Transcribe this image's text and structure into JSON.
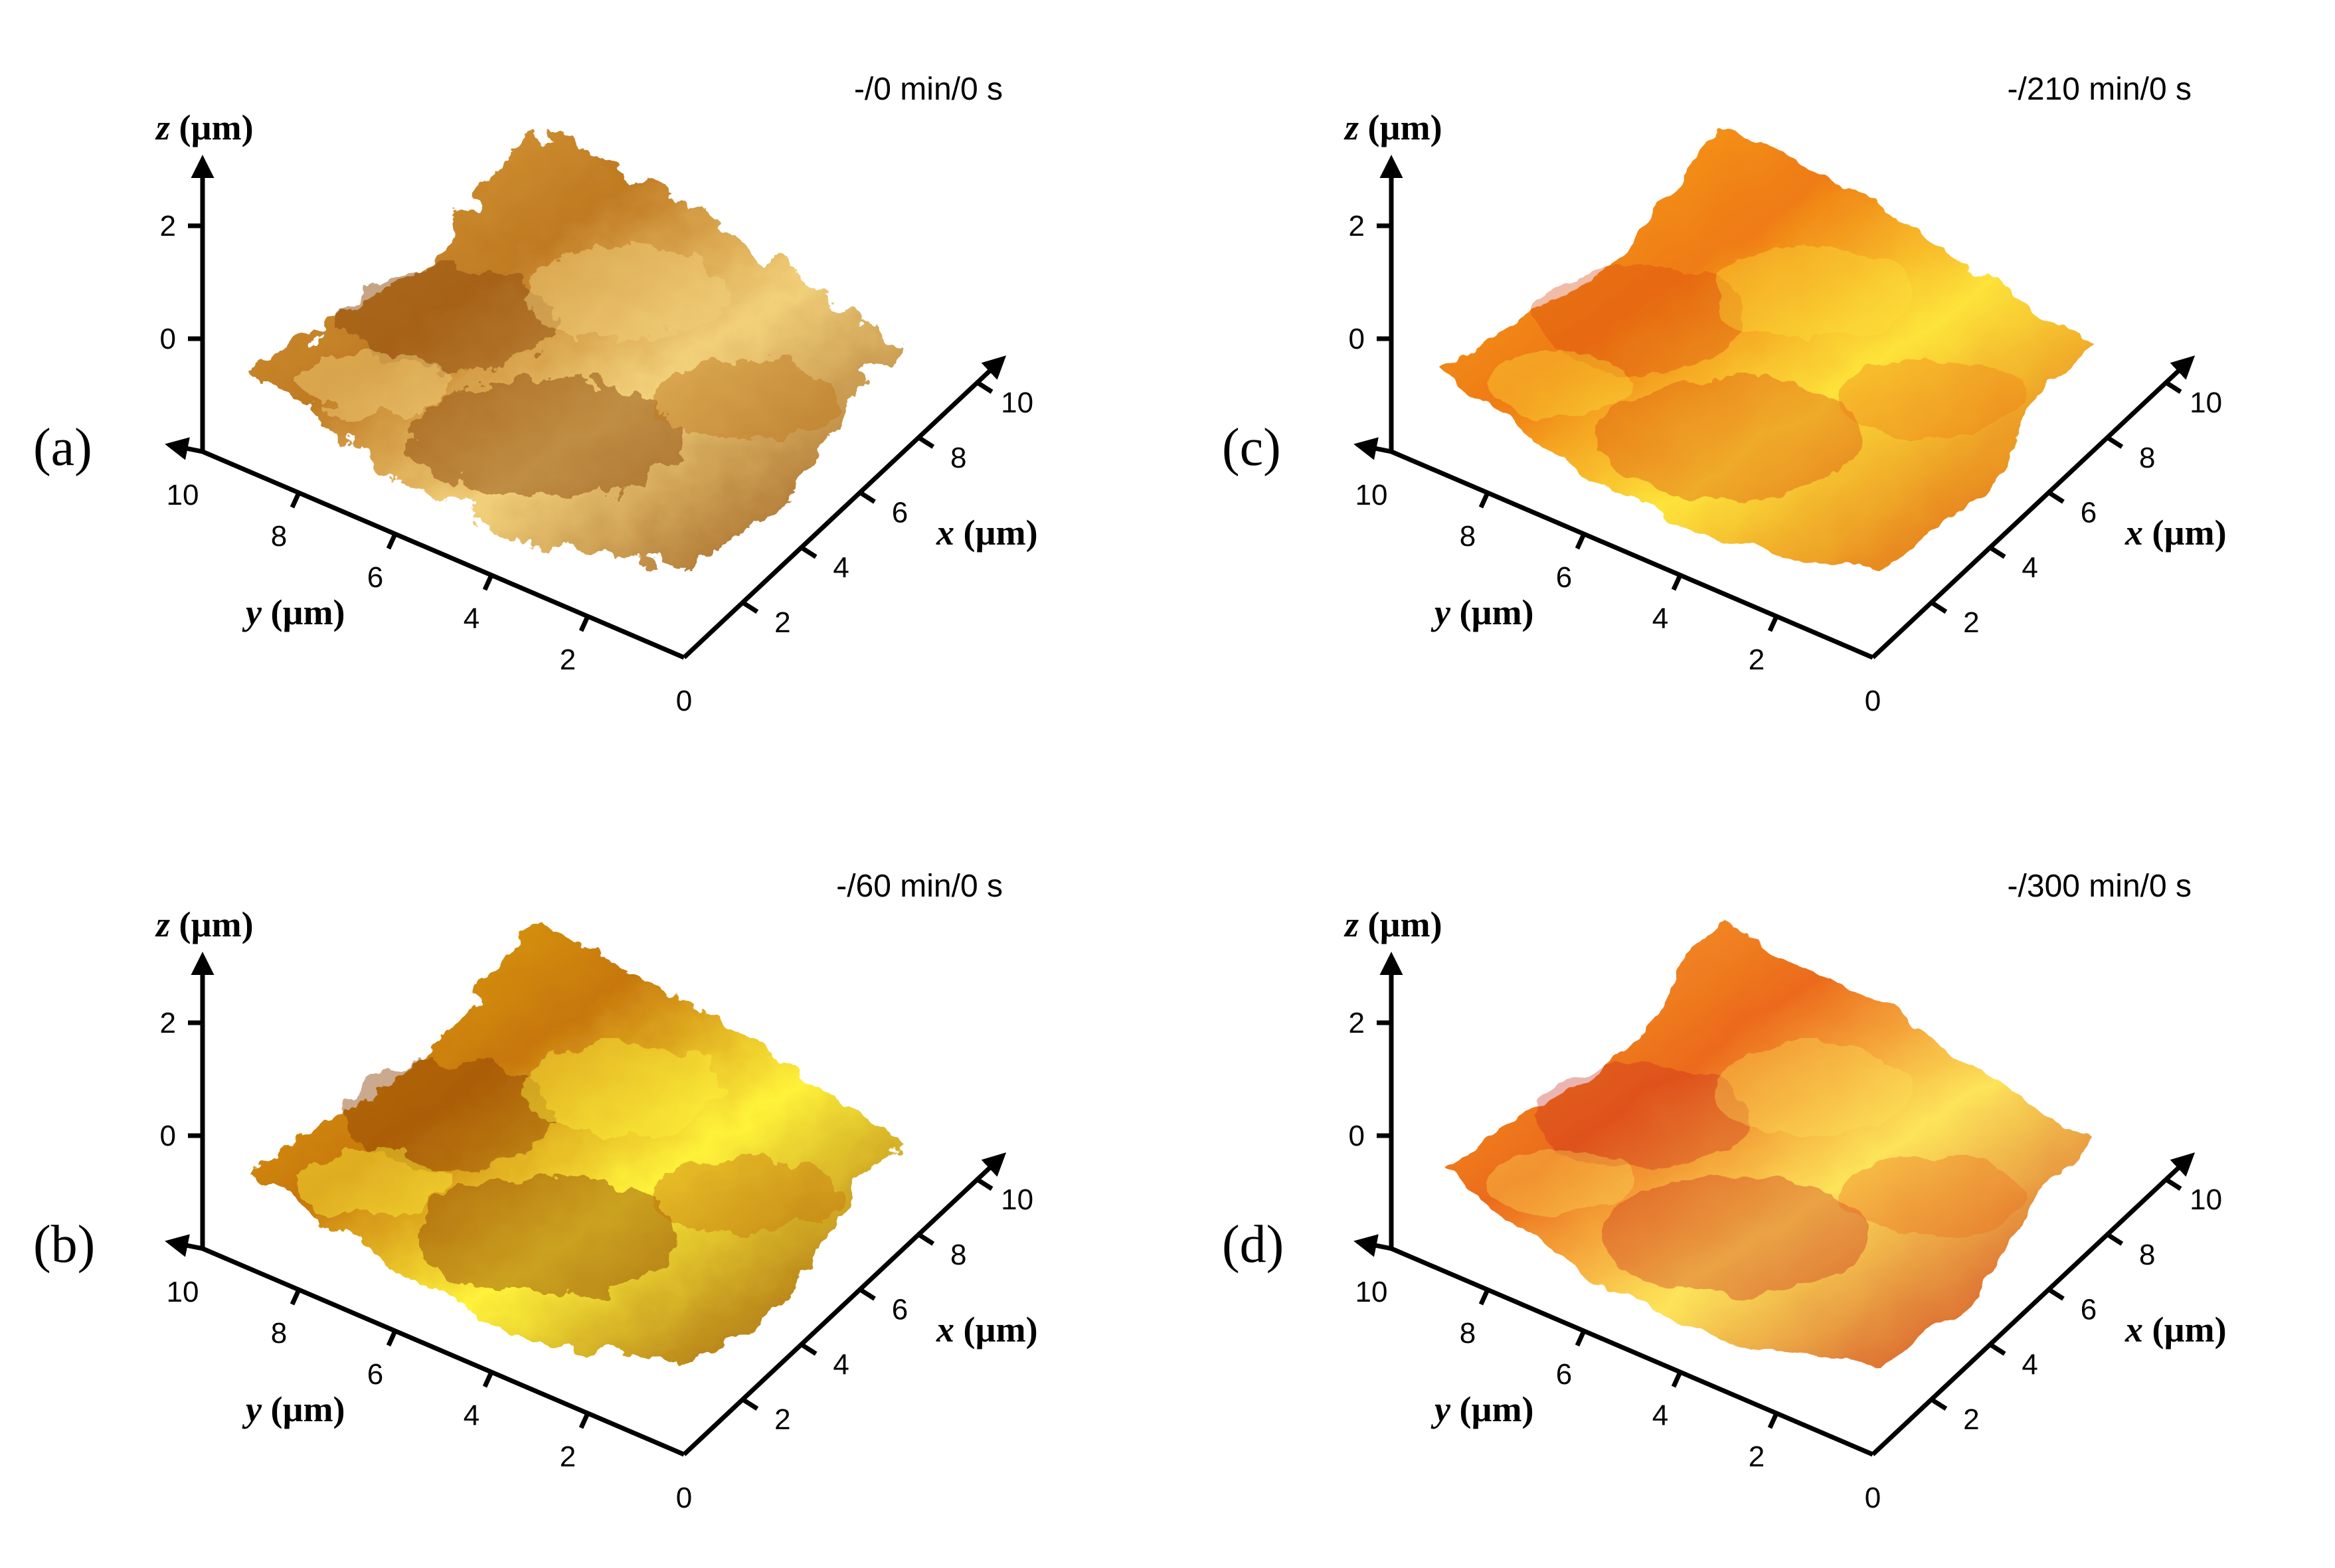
{
  "chart_data": [
    {
      "type": "surface3d",
      "panel_label": "(a)",
      "condition": "-/0 min/0 s",
      "xlabel": {
        "var": "x",
        "unit": "(µm)"
      },
      "ylabel": {
        "var": "y",
        "unit": "(µm)"
      },
      "zlabel": {
        "var": "z",
        "unit": "(µm)"
      },
      "x_ticks": [
        "2",
        "4",
        "6",
        "8",
        "10"
      ],
      "y_ticks": [
        "10",
        "8",
        "6",
        "4",
        "2"
      ],
      "z_ticks": [
        "2",
        "0"
      ],
      "origin_label": "0",
      "xlim": [
        0,
        10
      ],
      "ylim": [
        0,
        10
      ],
      "zlim": [
        -2,
        3
      ],
      "colormap": [
        "#8c4a10",
        "#c07a22",
        "#e0aa45",
        "#f2d07a"
      ],
      "roughness": 0.95
    },
    {
      "type": "surface3d",
      "panel_label": "(b)",
      "condition": "-/60 min/0 s",
      "xlabel": {
        "var": "x",
        "unit": "(µm)"
      },
      "ylabel": {
        "var": "y",
        "unit": "(µm)"
      },
      "zlabel": {
        "var": "z",
        "unit": "(µm)"
      },
      "x_ticks": [
        "2",
        "4",
        "6",
        "8",
        "10"
      ],
      "y_ticks": [
        "10",
        "8",
        "6",
        "4",
        "2"
      ],
      "z_ticks": [
        "2",
        "0"
      ],
      "origin_label": "0",
      "xlim": [
        0,
        10
      ],
      "ylim": [
        0,
        10
      ],
      "zlim": [
        -2,
        3
      ],
      "colormap": [
        "#8a3d05",
        "#c7770d",
        "#e8b418",
        "#fff23a"
      ],
      "roughness": 0.75
    },
    {
      "type": "surface3d",
      "panel_label": "(c)",
      "condition": "-/210 min/0 s",
      "xlabel": {
        "var": "x",
        "unit": "(µm)"
      },
      "ylabel": {
        "var": "y",
        "unit": "(µm)"
      },
      "zlabel": {
        "var": "z",
        "unit": "(µm)"
      },
      "x_ticks": [
        "2",
        "4",
        "6",
        "8",
        "10"
      ],
      "y_ticks": [
        "10",
        "8",
        "6",
        "4",
        "2"
      ],
      "z_ticks": [
        "2",
        "0"
      ],
      "origin_label": "0",
      "xlim": [
        0,
        10
      ],
      "ylim": [
        0,
        10
      ],
      "zlim": [
        -2,
        3
      ],
      "colormap": [
        "#d94a0c",
        "#ef7b12",
        "#f9b020",
        "#fde33a"
      ],
      "roughness": 0.45
    },
    {
      "type": "surface3d",
      "panel_label": "(d)",
      "condition": "-/300 min/0 s",
      "xlabel": {
        "var": "x",
        "unit": "(µm)"
      },
      "ylabel": {
        "var": "y",
        "unit": "(µm)"
      },
      "zlabel": {
        "var": "z",
        "unit": "(µm)"
      },
      "x_ticks": [
        "2",
        "4",
        "6",
        "8",
        "10"
      ],
      "y_ticks": [
        "10",
        "8",
        "6",
        "4",
        "2"
      ],
      "z_ticks": [
        "2",
        "0"
      ],
      "origin_label": "0",
      "xlim": [
        0,
        10
      ],
      "ylim": [
        0,
        10
      ],
      "zlim": [
        -2,
        3
      ],
      "colormap": [
        "#c8281a",
        "#ec6a1c",
        "#f7b02a",
        "#fde45a"
      ],
      "roughness": 0.35
    }
  ]
}
